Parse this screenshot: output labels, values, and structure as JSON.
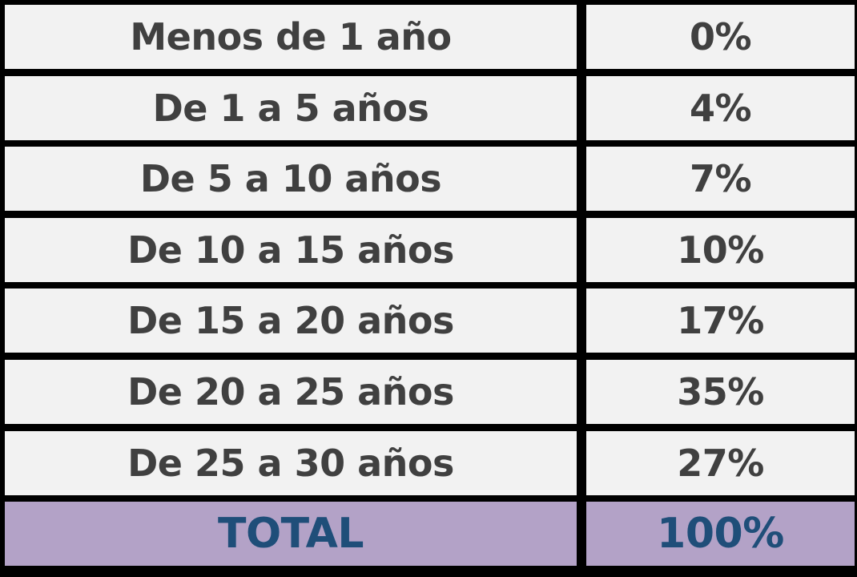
{
  "colors": {
    "cell_background": "#f2f2f2",
    "cell_text": "#404040",
    "total_background": "#b3a2c7",
    "total_text": "#1f4e79",
    "border": "#000000"
  },
  "table": {
    "rows": [
      {
        "label": "Menos de 1 año",
        "value": "0%"
      },
      {
        "label": "De 1 a 5 años",
        "value": "4%"
      },
      {
        "label": "De 5 a 10 años",
        "value": "7%"
      },
      {
        "label": "De 10 a 15 años",
        "value": "10%"
      },
      {
        "label": "De 15 a 20 años",
        "value": "17%"
      },
      {
        "label": "De 20 a 25 años",
        "value": "35%"
      },
      {
        "label": "De 25 a 30 años",
        "value": "27%"
      }
    ],
    "total": {
      "label": "TOTAL",
      "value": "100%"
    }
  }
}
